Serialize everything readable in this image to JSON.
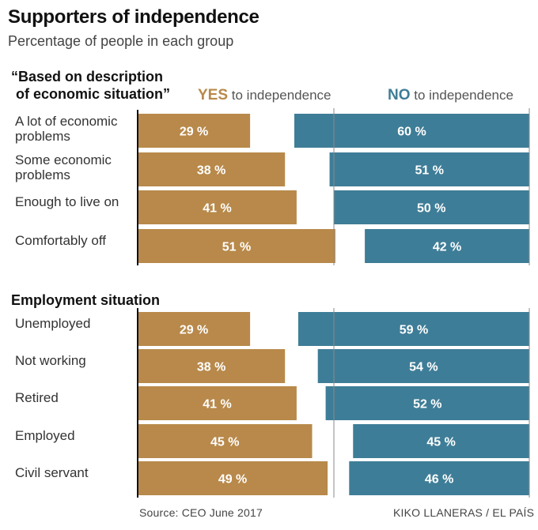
{
  "title": "Supporters of independence",
  "subtitle": "Percentage of people in each group",
  "legend": {
    "yes_key": "YES",
    "yes_text": "to independence",
    "no_key": "NO",
    "no_text": "to independence"
  },
  "colors": {
    "yes": "#B8894A",
    "no": "#3E7D97"
  },
  "source": "Source: CEO June 2017",
  "credit": "KIKO LLANERAS / EL PAÍS",
  "chart_data": [
    {
      "type": "bar",
      "title": "“Based on description of economic situation”",
      "title_lines": [
        "“Based on description",
        "of economic situation”"
      ],
      "categories": [
        "A lot of economic problems",
        "Some economic problems",
        "Enough to live on",
        "Comfortably off"
      ],
      "category_lines": [
        [
          "A lot of economic",
          "problems"
        ],
        [
          "Some economic",
          "problems"
        ],
        [
          "Enough to live on"
        ],
        [
          "Comfortably off"
        ]
      ],
      "series": [
        {
          "name": "YES to independence",
          "values": [
            29,
            38,
            41,
            51
          ]
        },
        {
          "name": "NO to independence",
          "values": [
            60,
            51,
            50,
            42
          ]
        }
      ],
      "unit": "%"
    },
    {
      "type": "bar",
      "title": "Employment situation",
      "title_lines": [
        "Employment situation"
      ],
      "categories": [
        "Unemployed",
        "Not working",
        "Retired",
        "Employed",
        "Civil servant"
      ],
      "category_lines": [
        [
          "Unemployed"
        ],
        [
          "Not working"
        ],
        [
          "Retired"
        ],
        [
          "Employed"
        ],
        [
          "Civil servant"
        ]
      ],
      "series": [
        {
          "name": "YES to independence",
          "values": [
            29,
            38,
            41,
            45,
            49
          ]
        },
        {
          "name": "NO to independence",
          "values": [
            59,
            54,
            52,
            45,
            46
          ]
        }
      ],
      "unit": "%"
    }
  ]
}
